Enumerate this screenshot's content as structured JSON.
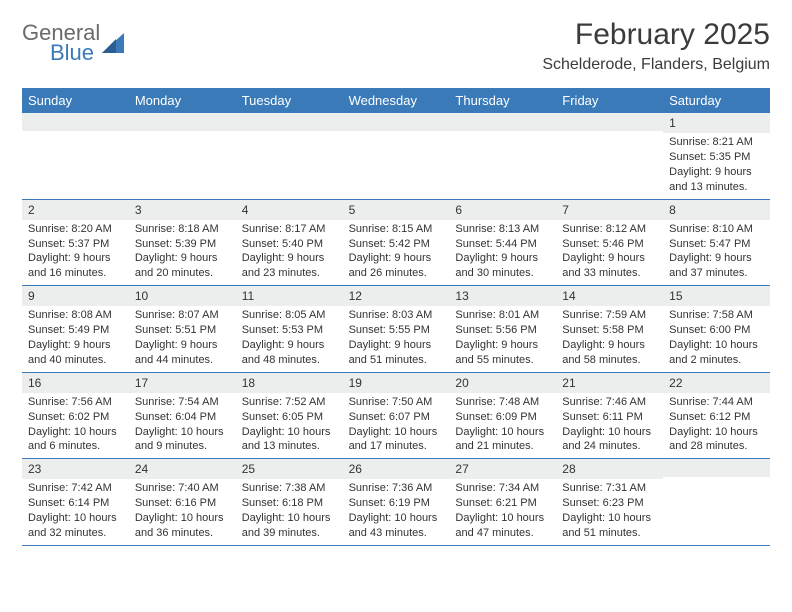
{
  "brand": {
    "name_top": "General",
    "name_bottom": "Blue"
  },
  "title": "February 2025",
  "location": "Schelderode, Flanders, Belgium",
  "colors": {
    "header_bar": "#3a7ab8",
    "daynum_bg": "#eceeee",
    "rule": "#3a7ab8",
    "text": "#333333",
    "logo_gray": "#6a6a6a",
    "logo_blue": "#3a7ab8",
    "background": "#ffffff"
  },
  "typography": {
    "title_fontsize": 30,
    "location_fontsize": 16,
    "dow_fontsize": 13,
    "daynum_fontsize": 12,
    "body_fontsize": 11
  },
  "days_of_week": [
    "Sunday",
    "Monday",
    "Tuesday",
    "Wednesday",
    "Thursday",
    "Friday",
    "Saturday"
  ],
  "weeks": [
    [
      {
        "n": "",
        "sunrise": "",
        "sunset": "",
        "daylight": ""
      },
      {
        "n": "",
        "sunrise": "",
        "sunset": "",
        "daylight": ""
      },
      {
        "n": "",
        "sunrise": "",
        "sunset": "",
        "daylight": ""
      },
      {
        "n": "",
        "sunrise": "",
        "sunset": "",
        "daylight": ""
      },
      {
        "n": "",
        "sunrise": "",
        "sunset": "",
        "daylight": ""
      },
      {
        "n": "",
        "sunrise": "",
        "sunset": "",
        "daylight": ""
      },
      {
        "n": "1",
        "sunrise": "Sunrise: 8:21 AM",
        "sunset": "Sunset: 5:35 PM",
        "daylight": "Daylight: 9 hours and 13 minutes."
      }
    ],
    [
      {
        "n": "2",
        "sunrise": "Sunrise: 8:20 AM",
        "sunset": "Sunset: 5:37 PM",
        "daylight": "Daylight: 9 hours and 16 minutes."
      },
      {
        "n": "3",
        "sunrise": "Sunrise: 8:18 AM",
        "sunset": "Sunset: 5:39 PM",
        "daylight": "Daylight: 9 hours and 20 minutes."
      },
      {
        "n": "4",
        "sunrise": "Sunrise: 8:17 AM",
        "sunset": "Sunset: 5:40 PM",
        "daylight": "Daylight: 9 hours and 23 minutes."
      },
      {
        "n": "5",
        "sunrise": "Sunrise: 8:15 AM",
        "sunset": "Sunset: 5:42 PM",
        "daylight": "Daylight: 9 hours and 26 minutes."
      },
      {
        "n": "6",
        "sunrise": "Sunrise: 8:13 AM",
        "sunset": "Sunset: 5:44 PM",
        "daylight": "Daylight: 9 hours and 30 minutes."
      },
      {
        "n": "7",
        "sunrise": "Sunrise: 8:12 AM",
        "sunset": "Sunset: 5:46 PM",
        "daylight": "Daylight: 9 hours and 33 minutes."
      },
      {
        "n": "8",
        "sunrise": "Sunrise: 8:10 AM",
        "sunset": "Sunset: 5:47 PM",
        "daylight": "Daylight: 9 hours and 37 minutes."
      }
    ],
    [
      {
        "n": "9",
        "sunrise": "Sunrise: 8:08 AM",
        "sunset": "Sunset: 5:49 PM",
        "daylight": "Daylight: 9 hours and 40 minutes."
      },
      {
        "n": "10",
        "sunrise": "Sunrise: 8:07 AM",
        "sunset": "Sunset: 5:51 PM",
        "daylight": "Daylight: 9 hours and 44 minutes."
      },
      {
        "n": "11",
        "sunrise": "Sunrise: 8:05 AM",
        "sunset": "Sunset: 5:53 PM",
        "daylight": "Daylight: 9 hours and 48 minutes."
      },
      {
        "n": "12",
        "sunrise": "Sunrise: 8:03 AM",
        "sunset": "Sunset: 5:55 PM",
        "daylight": "Daylight: 9 hours and 51 minutes."
      },
      {
        "n": "13",
        "sunrise": "Sunrise: 8:01 AM",
        "sunset": "Sunset: 5:56 PM",
        "daylight": "Daylight: 9 hours and 55 minutes."
      },
      {
        "n": "14",
        "sunrise": "Sunrise: 7:59 AM",
        "sunset": "Sunset: 5:58 PM",
        "daylight": "Daylight: 9 hours and 58 minutes."
      },
      {
        "n": "15",
        "sunrise": "Sunrise: 7:58 AM",
        "sunset": "Sunset: 6:00 PM",
        "daylight": "Daylight: 10 hours and 2 minutes."
      }
    ],
    [
      {
        "n": "16",
        "sunrise": "Sunrise: 7:56 AM",
        "sunset": "Sunset: 6:02 PM",
        "daylight": "Daylight: 10 hours and 6 minutes."
      },
      {
        "n": "17",
        "sunrise": "Sunrise: 7:54 AM",
        "sunset": "Sunset: 6:04 PM",
        "daylight": "Daylight: 10 hours and 9 minutes."
      },
      {
        "n": "18",
        "sunrise": "Sunrise: 7:52 AM",
        "sunset": "Sunset: 6:05 PM",
        "daylight": "Daylight: 10 hours and 13 minutes."
      },
      {
        "n": "19",
        "sunrise": "Sunrise: 7:50 AM",
        "sunset": "Sunset: 6:07 PM",
        "daylight": "Daylight: 10 hours and 17 minutes."
      },
      {
        "n": "20",
        "sunrise": "Sunrise: 7:48 AM",
        "sunset": "Sunset: 6:09 PM",
        "daylight": "Daylight: 10 hours and 21 minutes."
      },
      {
        "n": "21",
        "sunrise": "Sunrise: 7:46 AM",
        "sunset": "Sunset: 6:11 PM",
        "daylight": "Daylight: 10 hours and 24 minutes."
      },
      {
        "n": "22",
        "sunrise": "Sunrise: 7:44 AM",
        "sunset": "Sunset: 6:12 PM",
        "daylight": "Daylight: 10 hours and 28 minutes."
      }
    ],
    [
      {
        "n": "23",
        "sunrise": "Sunrise: 7:42 AM",
        "sunset": "Sunset: 6:14 PM",
        "daylight": "Daylight: 10 hours and 32 minutes."
      },
      {
        "n": "24",
        "sunrise": "Sunrise: 7:40 AM",
        "sunset": "Sunset: 6:16 PM",
        "daylight": "Daylight: 10 hours and 36 minutes."
      },
      {
        "n": "25",
        "sunrise": "Sunrise: 7:38 AM",
        "sunset": "Sunset: 6:18 PM",
        "daylight": "Daylight: 10 hours and 39 minutes."
      },
      {
        "n": "26",
        "sunrise": "Sunrise: 7:36 AM",
        "sunset": "Sunset: 6:19 PM",
        "daylight": "Daylight: 10 hours and 43 minutes."
      },
      {
        "n": "27",
        "sunrise": "Sunrise: 7:34 AM",
        "sunset": "Sunset: 6:21 PM",
        "daylight": "Daylight: 10 hours and 47 minutes."
      },
      {
        "n": "28",
        "sunrise": "Sunrise: 7:31 AM",
        "sunset": "Sunset: 6:23 PM",
        "daylight": "Daylight: 10 hours and 51 minutes."
      },
      {
        "n": "",
        "sunrise": "",
        "sunset": "",
        "daylight": ""
      }
    ]
  ]
}
